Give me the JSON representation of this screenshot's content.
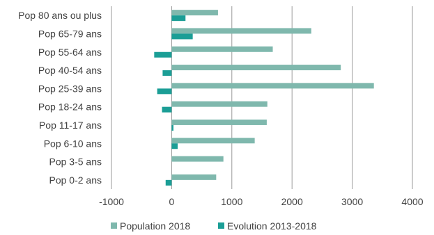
{
  "chart_data": {
    "type": "bar",
    "orientation": "horizontal",
    "categories": [
      "Pop 80 ans ou plus",
      "Pop 65-79 ans",
      "Pop 55-64 ans",
      "Pop 40-54 ans",
      "Pop 25-39 ans",
      "Pop 18-24 ans",
      "Pop 11-17 ans",
      "Pop 6-10 ans",
      "Pop 3-5 ans",
      "Pop 0-2 ans"
    ],
    "series": [
      {
        "name": "Population 2018",
        "color": "#7fb8ad",
        "values": [
          770,
          2320,
          1680,
          2810,
          3360,
          1590,
          1580,
          1380,
          860,
          740
        ]
      },
      {
        "name": "Evolution 2013-2018",
        "color": "#1b9e96",
        "values": [
          230,
          350,
          -290,
          -150,
          -240,
          -160,
          30,
          100,
          0,
          -100
        ]
      }
    ],
    "xlim": [
      -1000,
      4000
    ],
    "xticks": [
      "-1000",
      "0",
      "1000",
      "2000",
      "3000",
      "4000"
    ],
    "xtick_values": [
      -1000,
      0,
      1000,
      2000,
      3000,
      4000
    ],
    "grid": "vertical",
    "legend": "bottom"
  }
}
